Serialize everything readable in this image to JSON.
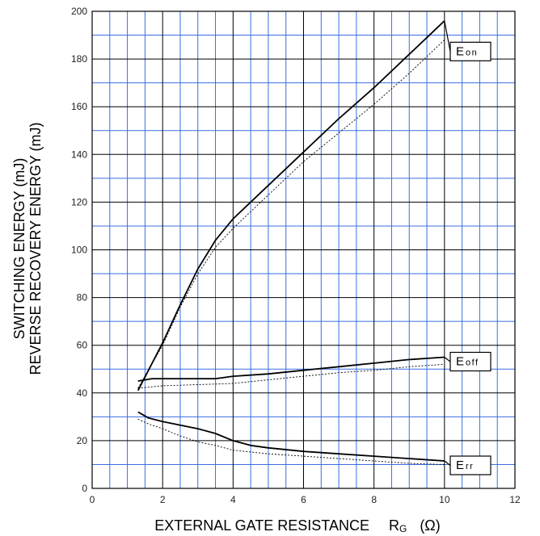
{
  "chart_data": {
    "type": "line",
    "xlabel": "EXTERNAL GATE RESISTANCE",
    "xlabel_symbol": "R",
    "xlabel_subscript": "G",
    "xlabel_unit": "(Ω)",
    "ylabel_line1": "SWITCHING ENERGY   (mJ)",
    "ylabel_line2": "REVERSE RECOVERY ENERGY   (mJ)",
    "xlim": [
      0,
      12
    ],
    "ylim": [
      0,
      200
    ],
    "x_major_ticks": [
      0,
      2,
      4,
      6,
      8,
      10,
      12
    ],
    "y_major_ticks": [
      0,
      20,
      40,
      60,
      80,
      100,
      120,
      140,
      160,
      180,
      200
    ],
    "x_tick_labels": [
      "0",
      "2",
      "4",
      "6",
      "8",
      "10",
      "12"
    ],
    "y_tick_labels": [
      "0",
      "20",
      "40",
      "60",
      "80",
      "100",
      "120",
      "140",
      "160",
      "180",
      "200"
    ],
    "grid": true,
    "colors": {
      "minor_grid": "#3a6fe0",
      "major_grid": "#000000",
      "curve": "#000000"
    },
    "series": [
      {
        "name": "E",
        "subscript": "on",
        "style": "solid",
        "points": [
          [
            1.3,
            41
          ],
          [
            2,
            61
          ],
          [
            2.5,
            77
          ],
          [
            3,
            92
          ],
          [
            3.5,
            104
          ],
          [
            4,
            113
          ],
          [
            5,
            127
          ],
          [
            6,
            141
          ],
          [
            7,
            155
          ],
          [
            8,
            168
          ],
          [
            9,
            182
          ],
          [
            10,
            196
          ]
        ]
      },
      {
        "name": "",
        "style": "dotted",
        "points": [
          [
            1.3,
            42
          ],
          [
            2,
            60
          ],
          [
            2.5,
            76
          ],
          [
            3,
            90
          ],
          [
            3.5,
            101
          ],
          [
            4,
            109
          ],
          [
            5,
            123
          ],
          [
            6,
            137
          ],
          [
            7,
            149
          ],
          [
            8,
            161
          ],
          [
            9,
            174
          ],
          [
            10,
            188
          ]
        ]
      },
      {
        "name": "E",
        "subscript": "off",
        "style": "solid",
        "points": [
          [
            1.3,
            45
          ],
          [
            1.7,
            46
          ],
          [
            2.5,
            46
          ],
          [
            3.5,
            46
          ],
          [
            4,
            47
          ],
          [
            5,
            48
          ],
          [
            6,
            49.5
          ],
          [
            7,
            51
          ],
          [
            8,
            52.5
          ],
          [
            9,
            54
          ],
          [
            10,
            55
          ]
        ]
      },
      {
        "name": "",
        "style": "dotted",
        "points": [
          [
            1.3,
            42
          ],
          [
            2,
            43
          ],
          [
            3,
            43.5
          ],
          [
            4,
            44
          ],
          [
            5,
            45.5
          ],
          [
            6,
            47
          ],
          [
            7,
            48.5
          ],
          [
            8,
            49.5
          ],
          [
            9,
            51
          ],
          [
            10,
            52
          ]
        ]
      },
      {
        "name": "E",
        "subscript": "rr",
        "style": "solid",
        "points": [
          [
            1.3,
            32
          ],
          [
            1.6,
            29.5
          ],
          [
            2,
            28
          ],
          [
            3,
            25
          ],
          [
            3.5,
            23
          ],
          [
            4,
            20
          ],
          [
            4.5,
            18
          ],
          [
            5,
            17
          ],
          [
            6,
            15.5
          ],
          [
            7,
            14.5
          ],
          [
            8,
            13.5
          ],
          [
            9,
            12.5
          ],
          [
            10,
            11.5
          ]
        ]
      },
      {
        "name": "",
        "style": "dotted",
        "points": [
          [
            1.3,
            29
          ],
          [
            1.6,
            27
          ],
          [
            2,
            25
          ],
          [
            2.5,
            22
          ],
          [
            3,
            19.5
          ],
          [
            3.5,
            18
          ],
          [
            4,
            16
          ],
          [
            5,
            14.5
          ],
          [
            6,
            13.5
          ],
          [
            7,
            12.5
          ],
          [
            8,
            11.5
          ],
          [
            9,
            10.5
          ],
          [
            10,
            10
          ]
        ]
      }
    ]
  }
}
